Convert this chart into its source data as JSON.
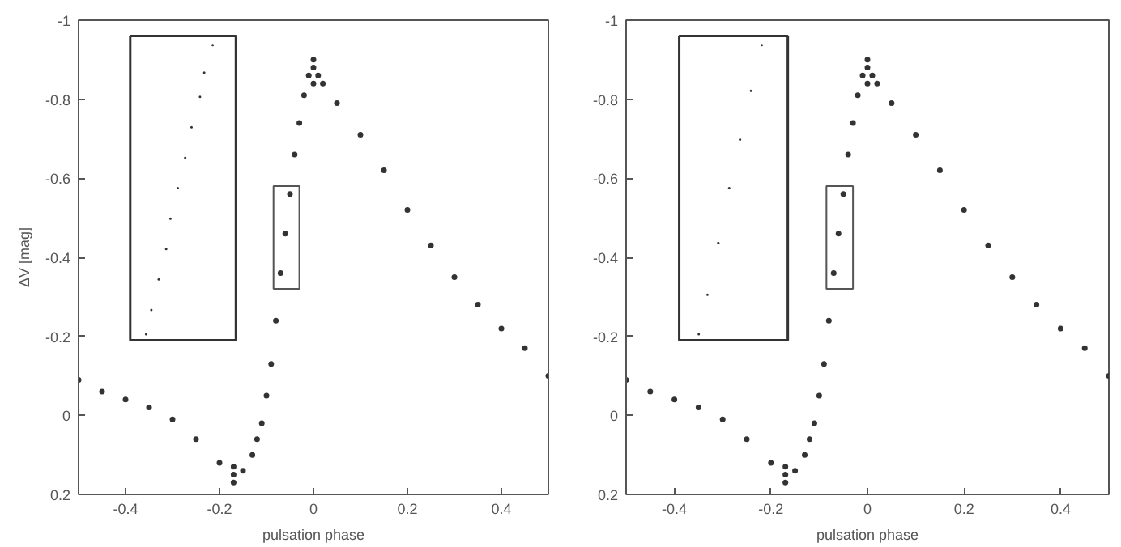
{
  "chart_data": [
    {
      "type": "scatter",
      "xlabel": "pulsation phase",
      "ylabel": "ΔV [mag]",
      "xlim": [
        -0.5,
        0.5
      ],
      "ylim": [
        0.2,
        -1
      ],
      "xticks": [
        -0.4,
        -0.2,
        0,
        0.2,
        0.4
      ],
      "yticks": [
        0.2,
        0,
        -0.2,
        -0.4,
        -0.6,
        -0.8,
        -1
      ],
      "grid": false,
      "marker": "circle",
      "series": [
        {
          "color": "#333333",
          "x": [
            -0.5,
            -0.45,
            -0.4,
            -0.35,
            -0.3,
            -0.25,
            -0.2,
            -0.17,
            -0.17,
            -0.17,
            -0.15,
            -0.13,
            -0.12,
            -0.11,
            -0.1,
            -0.09,
            -0.08,
            -0.07,
            -0.06,
            -0.05,
            -0.04,
            -0.03,
            -0.02,
            -0.01,
            0,
            0,
            0,
            0.01,
            0.02,
            0.05,
            0.1,
            0.15,
            0.2,
            0.25,
            0.3,
            0.35,
            0.4,
            0.45,
            0.5
          ],
          "values": [
            -0.09,
            -0.06,
            -0.04,
            -0.02,
            0.01,
            0.06,
            0.12,
            0.15,
            0.17,
            0.13,
            0.14,
            0.1,
            0.06,
            0.02,
            -0.05,
            -0.13,
            -0.24,
            -0.36,
            -0.46,
            -0.56,
            -0.66,
            -0.74,
            -0.81,
            -0.86,
            -0.88,
            -0.9,
            -0.84,
            -0.86,
            -0.84,
            -0.79,
            -0.71,
            -0.62,
            -0.52,
            -0.43,
            -0.35,
            -0.28,
            -0.22,
            -0.17,
            -0.1
          ]
        }
      ]
    },
    {
      "type": "scatter",
      "xlabel": "pulsation phase",
      "xlim": [
        -0.5,
        0.5
      ],
      "ylim": [
        0.2,
        -1
      ],
      "xticks": [
        -0.4,
        -0.2,
        0,
        0.2,
        0.4
      ],
      "yticks": [
        0.2,
        0,
        -0.2,
        -0.4,
        -0.6,
        -0.8,
        -1
      ],
      "grid": false,
      "marker": "circle",
      "series": [
        {
          "color": "#333333",
          "x": [
            -0.5,
            -0.45,
            -0.4,
            -0.35,
            -0.3,
            -0.25,
            -0.2,
            -0.17,
            -0.17,
            -0.17,
            -0.15,
            -0.13,
            -0.12,
            -0.11,
            -0.1,
            -0.09,
            -0.08,
            -0.07,
            -0.06,
            -0.05,
            -0.04,
            -0.03,
            -0.02,
            -0.01,
            0,
            0,
            0,
            0.01,
            0.02,
            0.05,
            0.1,
            0.15,
            0.2,
            0.25,
            0.3,
            0.35,
            0.4,
            0.45,
            0.5
          ],
          "values": [
            -0.09,
            -0.06,
            -0.04,
            -0.02,
            0.01,
            0.06,
            0.12,
            0.15,
            0.17,
            0.13,
            0.14,
            0.1,
            0.06,
            0.02,
            -0.05,
            -0.13,
            -0.24,
            -0.36,
            -0.46,
            -0.56,
            -0.66,
            -0.74,
            -0.81,
            -0.86,
            -0.88,
            -0.9,
            -0.84,
            -0.86,
            -0.84,
            -0.79,
            -0.71,
            -0.62,
            -0.52,
            -0.43,
            -0.35,
            -0.28,
            -0.22,
            -0.17,
            -0.1
          ]
        }
      ]
    }
  ]
}
